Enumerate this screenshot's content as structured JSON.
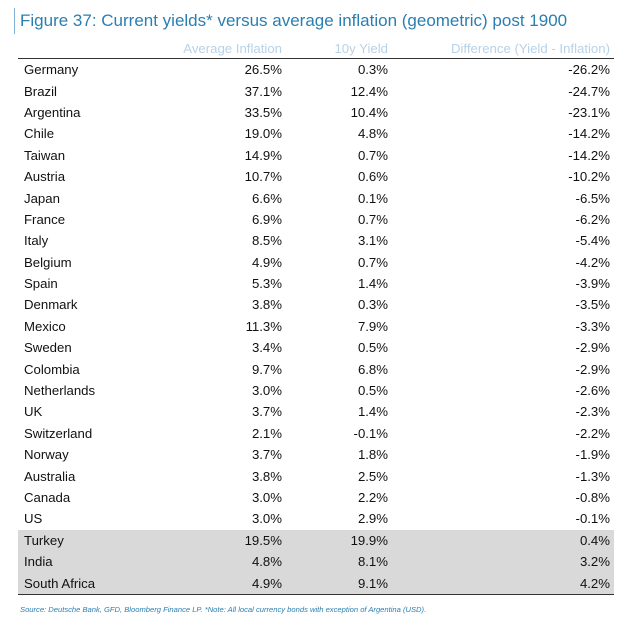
{
  "figure": {
    "title": "Figure 37: Current yields* versus average inflation (geometric) post 1900",
    "source": "Source: Deutsche Bank, GFD, Bloomberg Finance LP. *Note: All local currency bonds with exception of Argentina (USD)."
  },
  "table": {
    "headers": [
      "",
      "Average Inflation",
      "10y Yield",
      "Difference (Yield - Inflation)"
    ],
    "rows": [
      {
        "country": "Germany",
        "avg_inflation": "26.5%",
        "yield_10y": "0.3%",
        "difference": "-26.2%",
        "highlight": false
      },
      {
        "country": "Brazil",
        "avg_inflation": "37.1%",
        "yield_10y": "12.4%",
        "difference": "-24.7%",
        "highlight": false
      },
      {
        "country": "Argentina",
        "avg_inflation": "33.5%",
        "yield_10y": "10.4%",
        "difference": "-23.1%",
        "highlight": false
      },
      {
        "country": "Chile",
        "avg_inflation": "19.0%",
        "yield_10y": "4.8%",
        "difference": "-14.2%",
        "highlight": false
      },
      {
        "country": "Taiwan",
        "avg_inflation": "14.9%",
        "yield_10y": "0.7%",
        "difference": "-14.2%",
        "highlight": false
      },
      {
        "country": "Austria",
        "avg_inflation": "10.7%",
        "yield_10y": "0.6%",
        "difference": "-10.2%",
        "highlight": false
      },
      {
        "country": "Japan",
        "avg_inflation": "6.6%",
        "yield_10y": "0.1%",
        "difference": "-6.5%",
        "highlight": false
      },
      {
        "country": "France",
        "avg_inflation": "6.9%",
        "yield_10y": "0.7%",
        "difference": "-6.2%",
        "highlight": false
      },
      {
        "country": "Italy",
        "avg_inflation": "8.5%",
        "yield_10y": "3.1%",
        "difference": "-5.4%",
        "highlight": false
      },
      {
        "country": "Belgium",
        "avg_inflation": "4.9%",
        "yield_10y": "0.7%",
        "difference": "-4.2%",
        "highlight": false
      },
      {
        "country": "Spain",
        "avg_inflation": "5.3%",
        "yield_10y": "1.4%",
        "difference": "-3.9%",
        "highlight": false
      },
      {
        "country": "Denmark",
        "avg_inflation": "3.8%",
        "yield_10y": "0.3%",
        "difference": "-3.5%",
        "highlight": false
      },
      {
        "country": "Mexico",
        "avg_inflation": "11.3%",
        "yield_10y": "7.9%",
        "difference": "-3.3%",
        "highlight": false
      },
      {
        "country": "Sweden",
        "avg_inflation": "3.4%",
        "yield_10y": "0.5%",
        "difference": "-2.9%",
        "highlight": false
      },
      {
        "country": "Colombia",
        "avg_inflation": "9.7%",
        "yield_10y": "6.8%",
        "difference": "-2.9%",
        "highlight": false
      },
      {
        "country": "Netherlands",
        "avg_inflation": "3.0%",
        "yield_10y": "0.5%",
        "difference": "-2.6%",
        "highlight": false
      },
      {
        "country": "UK",
        "avg_inflation": "3.7%",
        "yield_10y": "1.4%",
        "difference": "-2.3%",
        "highlight": false
      },
      {
        "country": "Switzerland",
        "avg_inflation": "2.1%",
        "yield_10y": "-0.1%",
        "difference": "-2.2%",
        "highlight": false
      },
      {
        "country": "Norway",
        "avg_inflation": "3.7%",
        "yield_10y": "1.8%",
        "difference": "-1.9%",
        "highlight": false
      },
      {
        "country": "Australia",
        "avg_inflation": "3.8%",
        "yield_10y": "2.5%",
        "difference": "-1.3%",
        "highlight": false
      },
      {
        "country": "Canada",
        "avg_inflation": "3.0%",
        "yield_10y": "2.2%",
        "difference": "-0.8%",
        "highlight": false
      },
      {
        "country": "US",
        "avg_inflation": "3.0%",
        "yield_10y": "2.9%",
        "difference": "-0.1%",
        "highlight": false
      },
      {
        "country": "Turkey",
        "avg_inflation": "19.5%",
        "yield_10y": "19.9%",
        "difference": "0.4%",
        "highlight": true
      },
      {
        "country": "India",
        "avg_inflation": "4.8%",
        "yield_10y": "8.1%",
        "difference": "3.2%",
        "highlight": true
      },
      {
        "country": "South Africa",
        "avg_inflation": "4.9%",
        "yield_10y": "9.1%",
        "difference": "4.2%",
        "highlight": true
      }
    ]
  },
  "colors": {
    "title": "#2a7fb0",
    "header_text": "#b7d2e8",
    "highlight_row": "#d9d9d9"
  }
}
